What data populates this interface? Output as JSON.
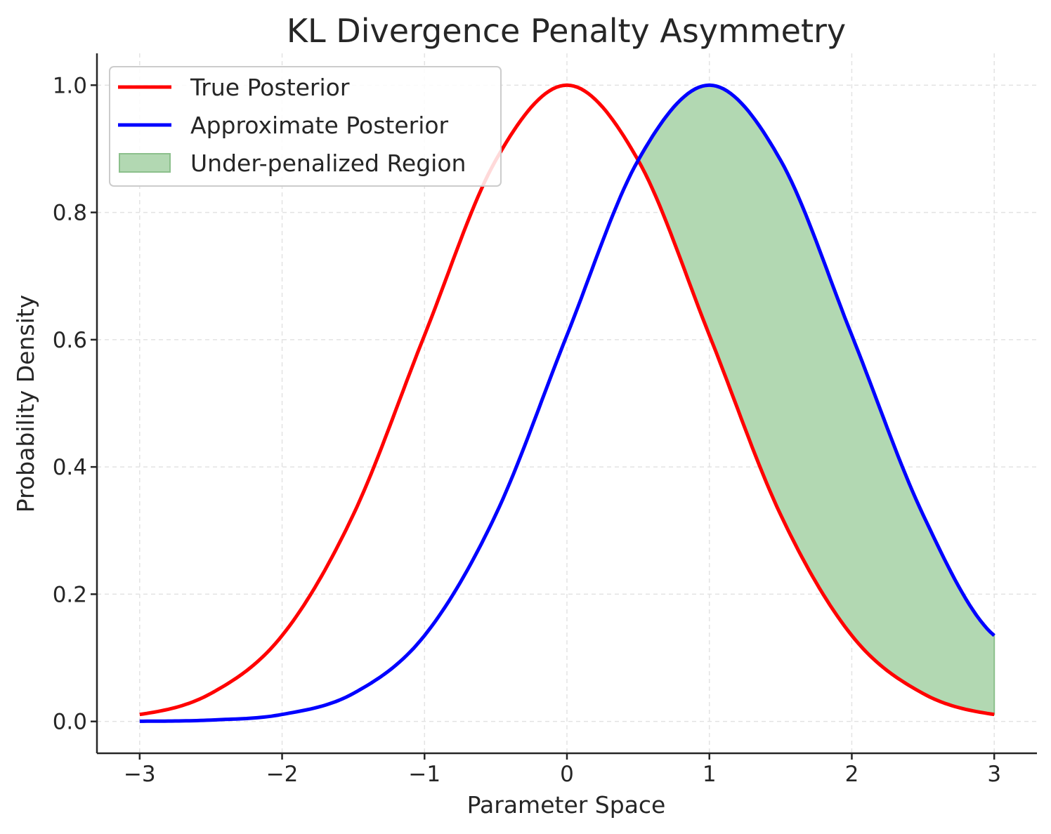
{
  "chart_data": {
    "type": "line",
    "title": "KL Divergence Penalty Asymmetry",
    "xlabel": "Parameter Space",
    "ylabel": "Probability Density",
    "xlim": [
      -3.3,
      3.3
    ],
    "ylim": [
      -0.05,
      1.05
    ],
    "xticks": [
      -3,
      -2,
      -1,
      0,
      1,
      2,
      3
    ],
    "xtick_labels": [
      "−3",
      "−2",
      "−1",
      "0",
      "1",
      "2",
      "3"
    ],
    "yticks": [
      0.0,
      0.2,
      0.4,
      0.6,
      0.8,
      1.0
    ],
    "ytick_labels": [
      "0.0",
      "0.2",
      "0.4",
      "0.6",
      "0.8",
      "1.0"
    ],
    "grid": true,
    "legend_position": "upper-left",
    "x": [
      -3.0,
      -2.5,
      -2.0,
      -1.5,
      -1.0,
      -0.5,
      0.0,
      0.5,
      1.0,
      1.5,
      2.0,
      2.5,
      3.0
    ],
    "series": [
      {
        "name": "True Posterior",
        "color": "#ff0000",
        "values": [
          0.011,
          0.044,
          0.135,
          0.325,
          0.607,
          0.882,
          1.0,
          0.882,
          0.607,
          0.325,
          0.135,
          0.044,
          0.011
        ]
      },
      {
        "name": "Approximate Posterior",
        "color": "#0000ff",
        "values": [
          0.0003,
          0.0022,
          0.011,
          0.044,
          0.135,
          0.325,
          0.607,
          0.882,
          1.0,
          0.882,
          0.607,
          0.325,
          0.135
        ]
      }
    ],
    "fill_region": {
      "name": "Under-penalized Region",
      "color": "#b2d8b2",
      "edge_color": "#8cc08c",
      "x_range": [
        0.5,
        3.0
      ],
      "between": [
        "True Posterior",
        "Approximate Posterior"
      ]
    }
  }
}
